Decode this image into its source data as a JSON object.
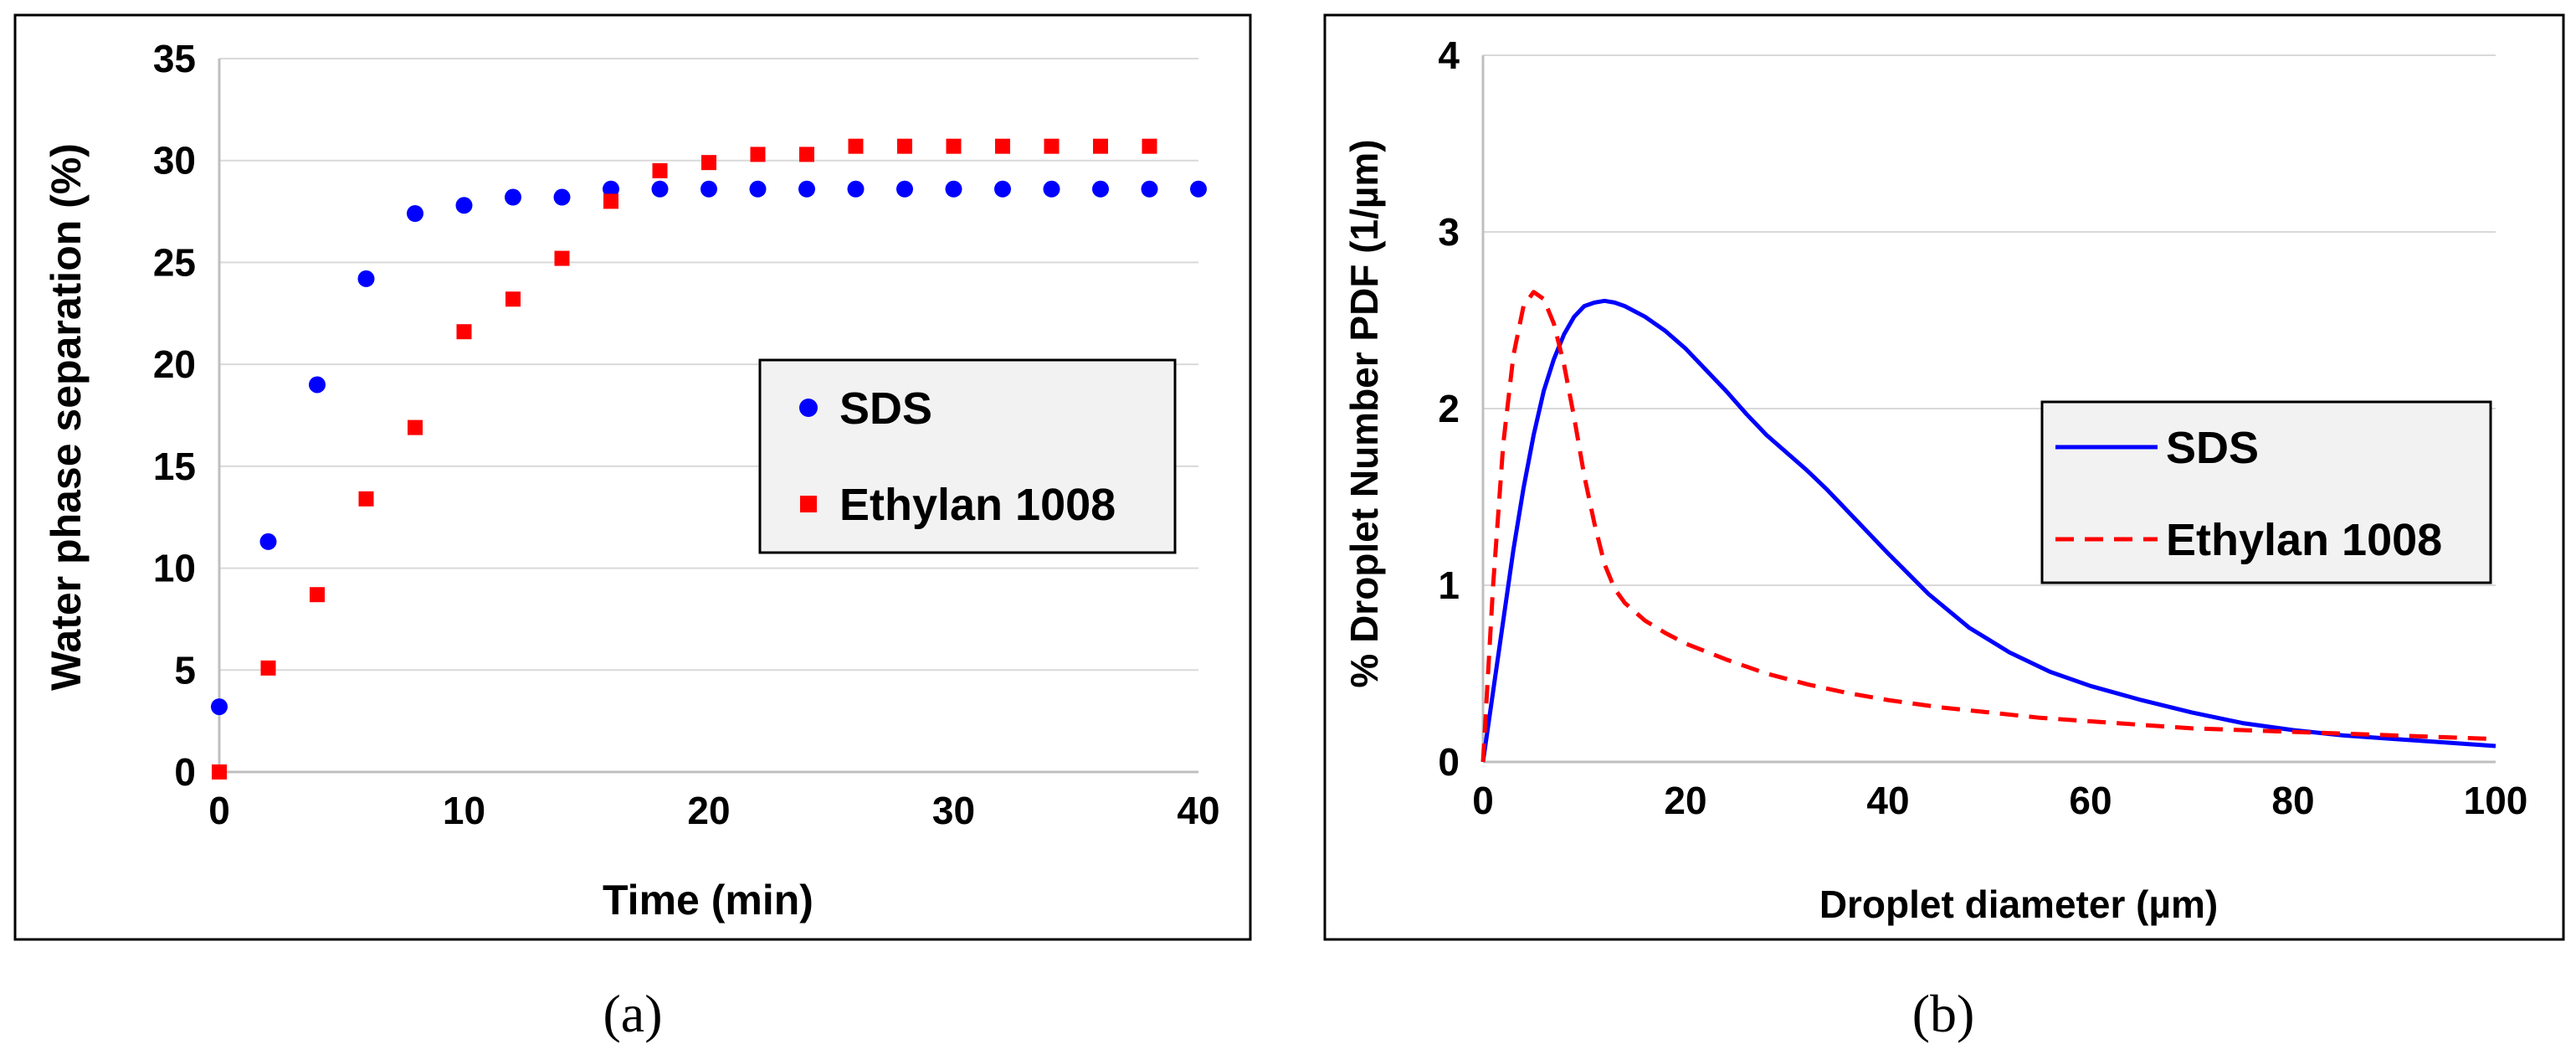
{
  "colors": {
    "sds": "#0000ff",
    "ethylan": "#ff0000",
    "grid": "#d9d9d9",
    "axis": "#bfbfbf",
    "frame": "#000000",
    "legend_bg": "#f2f2f2"
  },
  "chart_data": [
    {
      "type": "scatter",
      "panel_label": "(a)",
      "xlabel": "Time (min)",
      "ylabel": "Water phase separation (%)",
      "xlim": [
        0,
        40
      ],
      "ylim": [
        0,
        35
      ],
      "xticks": [
        0,
        10,
        20,
        30,
        40
      ],
      "yticks": [
        0,
        5,
        10,
        15,
        20,
        25,
        30,
        35
      ],
      "grid": "horizontal",
      "legend_position": "center-right",
      "series": [
        {
          "name": "SDS",
          "marker": "circle",
          "x": [
            0,
            2,
            4,
            6,
            8,
            10,
            12,
            14,
            16,
            18,
            20,
            22,
            24,
            26,
            28,
            30,
            32,
            34,
            36,
            38,
            40
          ],
          "y": [
            3.2,
            11.3,
            19.0,
            24.2,
            27.4,
            27.8,
            28.2,
            28.2,
            28.6,
            28.6,
            28.6,
            28.6,
            28.6,
            28.6,
            28.6,
            28.6,
            28.6,
            28.6,
            28.6,
            28.6,
            28.6
          ]
        },
        {
          "name": "Ethylan 1008",
          "marker": "square",
          "x": [
            0,
            2,
            4,
            6,
            8,
            10,
            12,
            14,
            16,
            18,
            20,
            22,
            24,
            26,
            28,
            30,
            32,
            34,
            36,
            38
          ],
          "y": [
            0.0,
            5.1,
            8.7,
            13.4,
            16.9,
            21.6,
            23.2,
            25.2,
            28.0,
            29.5,
            29.9,
            30.3,
            30.3,
            30.7,
            30.7,
            30.7,
            30.7,
            30.7,
            30.7,
            30.7
          ]
        }
      ]
    },
    {
      "type": "line",
      "panel_label": "(b)",
      "xlabel": "Droplet diameter (µm)",
      "ylabel": "% Droplet Number PDF (1/µm)",
      "xlim": [
        0,
        100
      ],
      "ylim": [
        0,
        4
      ],
      "xticks": [
        0,
        20,
        40,
        60,
        80,
        100
      ],
      "yticks": [
        0,
        1,
        2,
        3,
        4
      ],
      "grid": "horizontal",
      "legend_position": "center-right",
      "series": [
        {
          "name": "SDS",
          "style": "solid",
          "x": [
            0,
            1,
            2,
            3,
            4,
            5,
            6,
            7,
            8,
            9,
            10,
            11,
            12,
            13,
            14,
            16,
            18,
            20,
            22,
            24,
            26,
            28,
            30,
            32,
            34,
            36,
            38,
            40,
            44,
            48,
            52,
            56,
            60,
            65,
            70,
            75,
            80,
            85,
            90,
            95,
            100
          ],
          "y": [
            0.0,
            0.4,
            0.8,
            1.2,
            1.55,
            1.85,
            2.1,
            2.28,
            2.42,
            2.52,
            2.58,
            2.6,
            2.61,
            2.6,
            2.58,
            2.52,
            2.44,
            2.34,
            2.22,
            2.1,
            1.97,
            1.85,
            1.75,
            1.65,
            1.54,
            1.42,
            1.3,
            1.18,
            0.95,
            0.76,
            0.62,
            0.51,
            0.43,
            0.35,
            0.28,
            0.22,
            0.18,
            0.15,
            0.13,
            0.11,
            0.09
          ]
        },
        {
          "name": "Ethylan 1008",
          "style": "dashed",
          "x": [
            0,
            1,
            2,
            3,
            4,
            5,
            6,
            7,
            8,
            9,
            10,
            11,
            12,
            13,
            14,
            16,
            18,
            20,
            24,
            28,
            32,
            36,
            40,
            45,
            50,
            55,
            60,
            65,
            70,
            75,
            80,
            85,
            90,
            95,
            100
          ],
          "y": [
            0.0,
            1.0,
            1.8,
            2.3,
            2.58,
            2.66,
            2.62,
            2.48,
            2.25,
            1.95,
            1.62,
            1.35,
            1.12,
            0.98,
            0.9,
            0.8,
            0.73,
            0.67,
            0.58,
            0.5,
            0.44,
            0.39,
            0.35,
            0.31,
            0.28,
            0.25,
            0.23,
            0.21,
            0.19,
            0.18,
            0.17,
            0.16,
            0.15,
            0.14,
            0.13
          ]
        }
      ]
    }
  ]
}
